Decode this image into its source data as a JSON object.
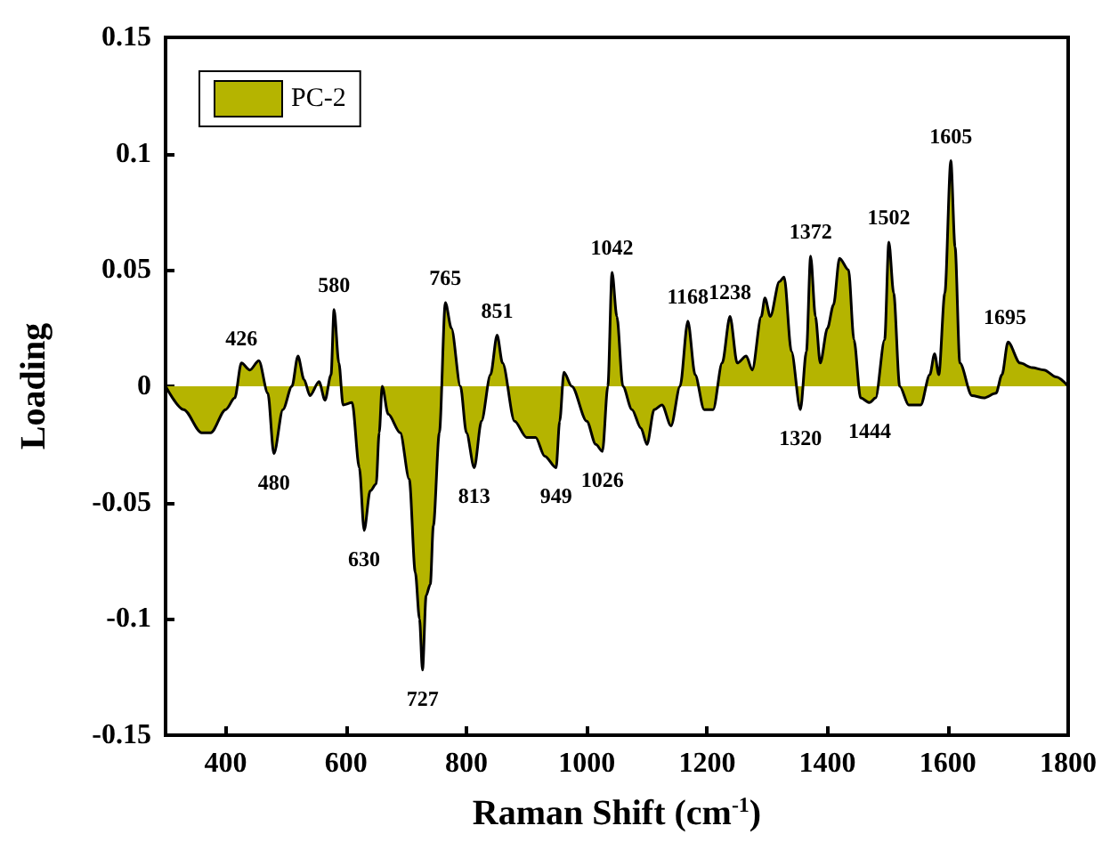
{
  "chart_data": {
    "type": "area",
    "xlabel": "Raman Shift (cm$^{-1}$)",
    "ylabel": "Loading",
    "xlim": [
      300,
      1800
    ],
    "xticks": [
      400,
      600,
      800,
      1000,
      1200,
      1400,
      1600,
      1800
    ],
    "ylim": [
      -0.15,
      0.15
    ],
    "yticks": [
      -0.15,
      -0.1,
      -0.05,
      0,
      0.05,
      0.1,
      0.15
    ],
    "grid": false,
    "legend": "top left",
    "series": [
      {
        "name": "PC-2",
        "color": "#b5b400",
        "x": [
          300,
          330,
          360,
          375,
          400,
          415,
          426,
          440,
          455,
          470,
          480,
          495,
          510,
          520,
          530,
          540,
          555,
          565,
          575,
          580,
          588,
          595,
          610,
          622,
          630,
          640,
          650,
          655,
          660,
          670,
          690,
          705,
          715,
          722,
          727,
          733,
          740,
          745,
          755,
          765,
          775,
          790,
          800,
          813,
          825,
          840,
          851,
          860,
          880,
          900,
          915,
          930,
          949,
          955,
          962,
          975,
          1000,
          1015,
          1026,
          1035,
          1042,
          1050,
          1060,
          1075,
          1090,
          1100,
          1112,
          1125,
          1140,
          1155,
          1168,
          1180,
          1195,
          1210,
          1225,
          1238,
          1250,
          1265,
          1275,
          1290,
          1296,
          1305,
          1320,
          1328,
          1340,
          1355,
          1365,
          1372,
          1380,
          1388,
          1400,
          1410,
          1420,
          1435,
          1444,
          1455,
          1470,
          1480,
          1495,
          1502,
          1510,
          1520,
          1535,
          1555,
          1570,
          1578,
          1585,
          1595,
          1605,
          1612,
          1620,
          1640,
          1660,
          1680,
          1690,
          1700,
          1720,
          1740,
          1760,
          1780,
          1800
        ],
        "values": [
          0,
          -0.01,
          -0.02,
          -0.02,
          -0.01,
          -0.005,
          0.01,
          0.007,
          0.011,
          -0.003,
          -0.029,
          -0.01,
          0,
          0.013,
          0.003,
          -0.004,
          0.002,
          -0.006,
          0.005,
          0.033,
          0.01,
          -0.008,
          -0.007,
          -0.035,
          -0.062,
          -0.045,
          -0.042,
          -0.02,
          0,
          -0.012,
          -0.02,
          -0.04,
          -0.08,
          -0.1,
          -0.122,
          -0.09,
          -0.085,
          -0.06,
          -0.02,
          0.036,
          0.025,
          0,
          -0.02,
          -0.035,
          -0.015,
          0.005,
          0.022,
          0.01,
          -0.015,
          -0.022,
          -0.022,
          -0.03,
          -0.035,
          -0.015,
          0.006,
          0,
          -0.015,
          -0.025,
          -0.028,
          0,
          0.049,
          0.03,
          0,
          -0.01,
          -0.018,
          -0.025,
          -0.01,
          -0.008,
          -0.017,
          0,
          0.028,
          0.005,
          -0.01,
          -0.01,
          0.01,
          0.03,
          0.01,
          0.013,
          0.007,
          0.03,
          0.038,
          0.03,
          0.045,
          0.047,
          0.015,
          -0.01,
          0.015,
          0.056,
          0.03,
          0.01,
          0.025,
          0.035,
          0.055,
          0.05,
          0.02,
          -0.005,
          -0.007,
          -0.005,
          0.02,
          0.062,
          0.04,
          0,
          -0.008,
          -0.008,
          0.005,
          0.014,
          0.005,
          0.04,
          0.097,
          0.06,
          0.01,
          -0.004,
          -0.005,
          -0.003,
          0.005,
          0.019,
          0.01,
          0.008,
          0.007,
          0.004,
          0
        ]
      }
    ],
    "annotations": [
      {
        "text": "426",
        "x": 426,
        "y": 0.01
      },
      {
        "text": "480",
        "x": 480,
        "y": -0.029
      },
      {
        "text": "580",
        "x": 580,
        "y": 0.033
      },
      {
        "text": "630",
        "x": 630,
        "y": -0.062
      },
      {
        "text": "727",
        "x": 727,
        "y": -0.122
      },
      {
        "text": "765",
        "x": 765,
        "y": 0.036
      },
      {
        "text": "813",
        "x": 813,
        "y": -0.035
      },
      {
        "text": "851",
        "x": 851,
        "y": 0.022
      },
      {
        "text": "949",
        "x": 949,
        "y": -0.035
      },
      {
        "text": "1026",
        "x": 1026,
        "y": -0.028
      },
      {
        "text": "1042",
        "x": 1042,
        "y": 0.049
      },
      {
        "text": "1168",
        "x": 1168,
        "y": 0.028
      },
      {
        "text": "1238",
        "x": 1238,
        "y": 0.03
      },
      {
        "text": "1320",
        "x": 1355,
        "y": -0.01
      },
      {
        "text": "1372",
        "x": 1372,
        "y": 0.056
      },
      {
        "text": "1444",
        "x": 1470,
        "y": -0.007
      },
      {
        "text": "1502",
        "x": 1502,
        "y": 0.062
      },
      {
        "text": "1605",
        "x": 1605,
        "y": 0.097
      },
      {
        "text": "1695",
        "x": 1695,
        "y": 0.019
      }
    ]
  }
}
